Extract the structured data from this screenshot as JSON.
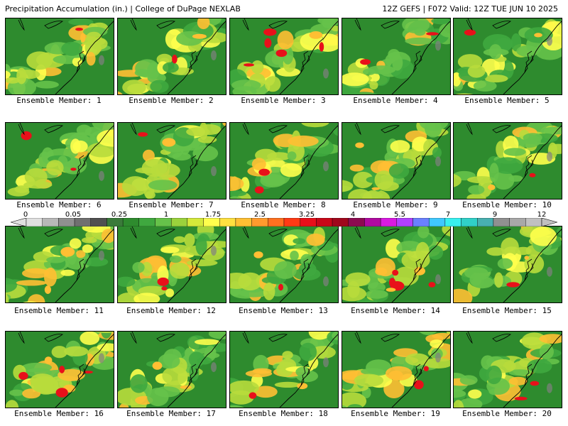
{
  "header": {
    "left": "Precipitation Accumulation (in.) | College of DuPage NEXLAB",
    "right": "12Z GEFS | F072 Valid: 12Z TUE JUN 10 2025"
  },
  "members": [
    "Ensemble Member: 1",
    "Ensemble Member: 2",
    "Ensemble Member: 3",
    "Ensemble Member: 4",
    "Ensemble Member: 5",
    "Ensemble Member: 6",
    "Ensemble Member: 7",
    "Ensemble Member: 8",
    "Ensemble Member: 9",
    "Ensemble Member: 10",
    "Ensemble Member: 11",
    "Ensemble Member: 12",
    "Ensemble Member: 13",
    "Ensemble Member: 14",
    "Ensemble Member: 15",
    "Ensemble Member: 16",
    "Ensemble Member: 17",
    "Ensemble Member: 18",
    "Ensemble Member: 19",
    "Ensemble Member: 20"
  ],
  "colorbar": {
    "labels": [
      "0",
      "0.05",
      "0.25",
      "1",
      "1.75",
      "2.5",
      "3.25",
      "4",
      "5.5",
      "7",
      "9",
      "12"
    ],
    "colors": [
      "#e0e0e0",
      "#b8b8b8",
      "#909090",
      "#707070",
      "#505050",
      "#3a7a3a",
      "#2e8b2e",
      "#3fa83f",
      "#66c24a",
      "#9ad23c",
      "#d4e93a",
      "#ffff4d",
      "#ffe040",
      "#ffbf33",
      "#ff9a2e",
      "#ff7020",
      "#ff3a14",
      "#e8101a",
      "#c80818",
      "#a0081c",
      "#8c0a50",
      "#b00aa0",
      "#d81ae0",
      "#b040ff",
      "#6a80ff",
      "#40c8ff",
      "#38f0f0",
      "#30d0c8",
      "#48b0b0",
      "#909090",
      "#a8a8a8",
      "#c0c0c0"
    ]
  },
  "map_colors": {
    "dark_green": "#2e8b2e",
    "mid_green": "#3fa83f",
    "light_green": "#66c24a",
    "yellow_green": "#b8dc3c",
    "yellow": "#ffff4d",
    "orange": "#ffbf33",
    "red": "#e8101a",
    "gray": "#808080"
  }
}
